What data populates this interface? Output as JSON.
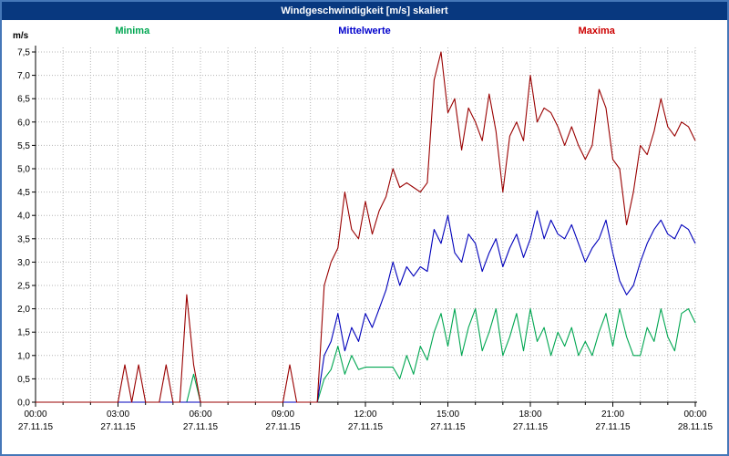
{
  "window": {
    "title": "Windgeschwindigkeit [m/s] skaliert"
  },
  "colors": {
    "titlebar_bg": "#08387f",
    "window_border": "#4577b8",
    "grid": "#b4b4b4",
    "axis": "#000000",
    "minima": "#00a651",
    "mittelwerte": "#0000bb",
    "maxima": "#990000"
  },
  "legend": [
    {
      "label": "Minima",
      "color": "#00a651"
    },
    {
      "label": "Mittelwerte",
      "color": "#0000cc"
    },
    {
      "label": "Maxima",
      "color": "#cc0000"
    }
  ],
  "chart_data": {
    "type": "line",
    "title": "Windgeschwindigkeit [m/s] skaliert",
    "ylabel": "m/s",
    "ylim": [
      0,
      7.5
    ],
    "ytick_step": 0.5,
    "grid": {
      "x_step_hours": 1,
      "y_step": 0.5,
      "style": "dotted"
    },
    "x_start_hour": 0,
    "x_step_hours": 0.25,
    "xticks": [
      {
        "hour": 0,
        "time": "00:00",
        "date": "27.11.15"
      },
      {
        "hour": 3,
        "time": "03:00",
        "date": "27.11.15"
      },
      {
        "hour": 6,
        "time": "06:00",
        "date": "27.11.15"
      },
      {
        "hour": 9,
        "time": "09:00",
        "date": "27.11.15"
      },
      {
        "hour": 12,
        "time": "12:00",
        "date": "27.11.15"
      },
      {
        "hour": 15,
        "time": "15:00",
        "date": "27.11.15"
      },
      {
        "hour": 18,
        "time": "18:00",
        "date": "27.11.15"
      },
      {
        "hour": 21,
        "time": "21:00",
        "date": "27.11.15"
      },
      {
        "hour": 24,
        "time": "00:00",
        "date": "28.11.15"
      }
    ],
    "series": [
      {
        "name": "Minima",
        "color": "#00a651",
        "values": [
          0,
          0,
          0,
          0,
          0,
          0,
          0,
          0,
          0,
          0,
          0,
          0,
          0,
          0,
          0,
          0,
          0,
          0,
          0,
          0,
          0,
          0,
          0,
          0.6,
          0,
          0,
          0,
          0,
          0,
          0,
          0,
          0,
          0,
          0,
          0,
          0,
          0,
          0,
          0,
          0,
          0,
          0,
          0.5,
          0.7,
          1.2,
          0.6,
          1,
          0.7,
          0.75,
          0.75,
          0.75,
          0.75,
          0.75,
          0.5,
          1,
          0.6,
          1.2,
          0.9,
          1.5,
          1.9,
          1.2,
          2,
          1,
          1.6,
          2,
          1.1,
          1.5,
          2,
          1,
          1.4,
          1.9,
          1.1,
          2,
          1.3,
          1.6,
          1,
          1.5,
          1.2,
          1.6,
          1,
          1.3,
          1,
          1.5,
          1.9,
          1.2,
          2,
          1.4,
          1,
          1,
          1.6,
          1.3,
          2,
          1.4,
          1.1,
          1.9,
          2,
          1.7
        ]
      },
      {
        "name": "Mittelwerte",
        "color": "#0000bb",
        "values": [
          0,
          0,
          0,
          0,
          0,
          0,
          0,
          0,
          0,
          0,
          0,
          0,
          0,
          0,
          0,
          0,
          0,
          0,
          0,
          0,
          0,
          0,
          0,
          0,
          0,
          0,
          0,
          0,
          0,
          0,
          0,
          0,
          0,
          0,
          0,
          0,
          0,
          0,
          0,
          0,
          0,
          0,
          1,
          1.3,
          1.9,
          1.1,
          1.6,
          1.3,
          1.9,
          1.6,
          2,
          2.4,
          3,
          2.5,
          2.9,
          2.7,
          2.9,
          2.8,
          3.7,
          3.4,
          4,
          3.2,
          3,
          3.6,
          3.4,
          2.8,
          3.2,
          3.5,
          2.9,
          3.3,
          3.6,
          3.1,
          3.5,
          4.1,
          3.5,
          3.9,
          3.6,
          3.5,
          3.8,
          3.4,
          3,
          3.3,
          3.5,
          3.9,
          3.2,
          2.6,
          2.3,
          2.5,
          3,
          3.4,
          3.7,
          3.9,
          3.6,
          3.5,
          3.8,
          3.7,
          3.4
        ]
      },
      {
        "name": "Maxima",
        "color": "#990000",
        "values": [
          0,
          0,
          0,
          0,
          0,
          0,
          0,
          0,
          0,
          0,
          0,
          0,
          0,
          0.8,
          0,
          0.8,
          0,
          0,
          0,
          0.8,
          0,
          0,
          2.3,
          0.8,
          0,
          0,
          0,
          0,
          0,
          0,
          0,
          0,
          0,
          0,
          0,
          0,
          0,
          0.8,
          0,
          0,
          0,
          0,
          2.5,
          3,
          3.3,
          4.5,
          3.7,
          3.5,
          4.3,
          3.6,
          4.1,
          4.4,
          5,
          4.6,
          4.7,
          4.6,
          4.5,
          4.7,
          6.9,
          7.5,
          6.2,
          6.5,
          5.4,
          6.3,
          6,
          5.6,
          6.6,
          5.8,
          4.5,
          5.7,
          6,
          5.6,
          7,
          6,
          6.3,
          6.2,
          5.9,
          5.5,
          5.9,
          5.5,
          5.2,
          5.5,
          6.7,
          6.3,
          5.2,
          5,
          3.8,
          4.5,
          5.5,
          5.3,
          5.8,
          6.5,
          5.9,
          5.7,
          6,
          5.9,
          5.6
        ]
      }
    ]
  }
}
